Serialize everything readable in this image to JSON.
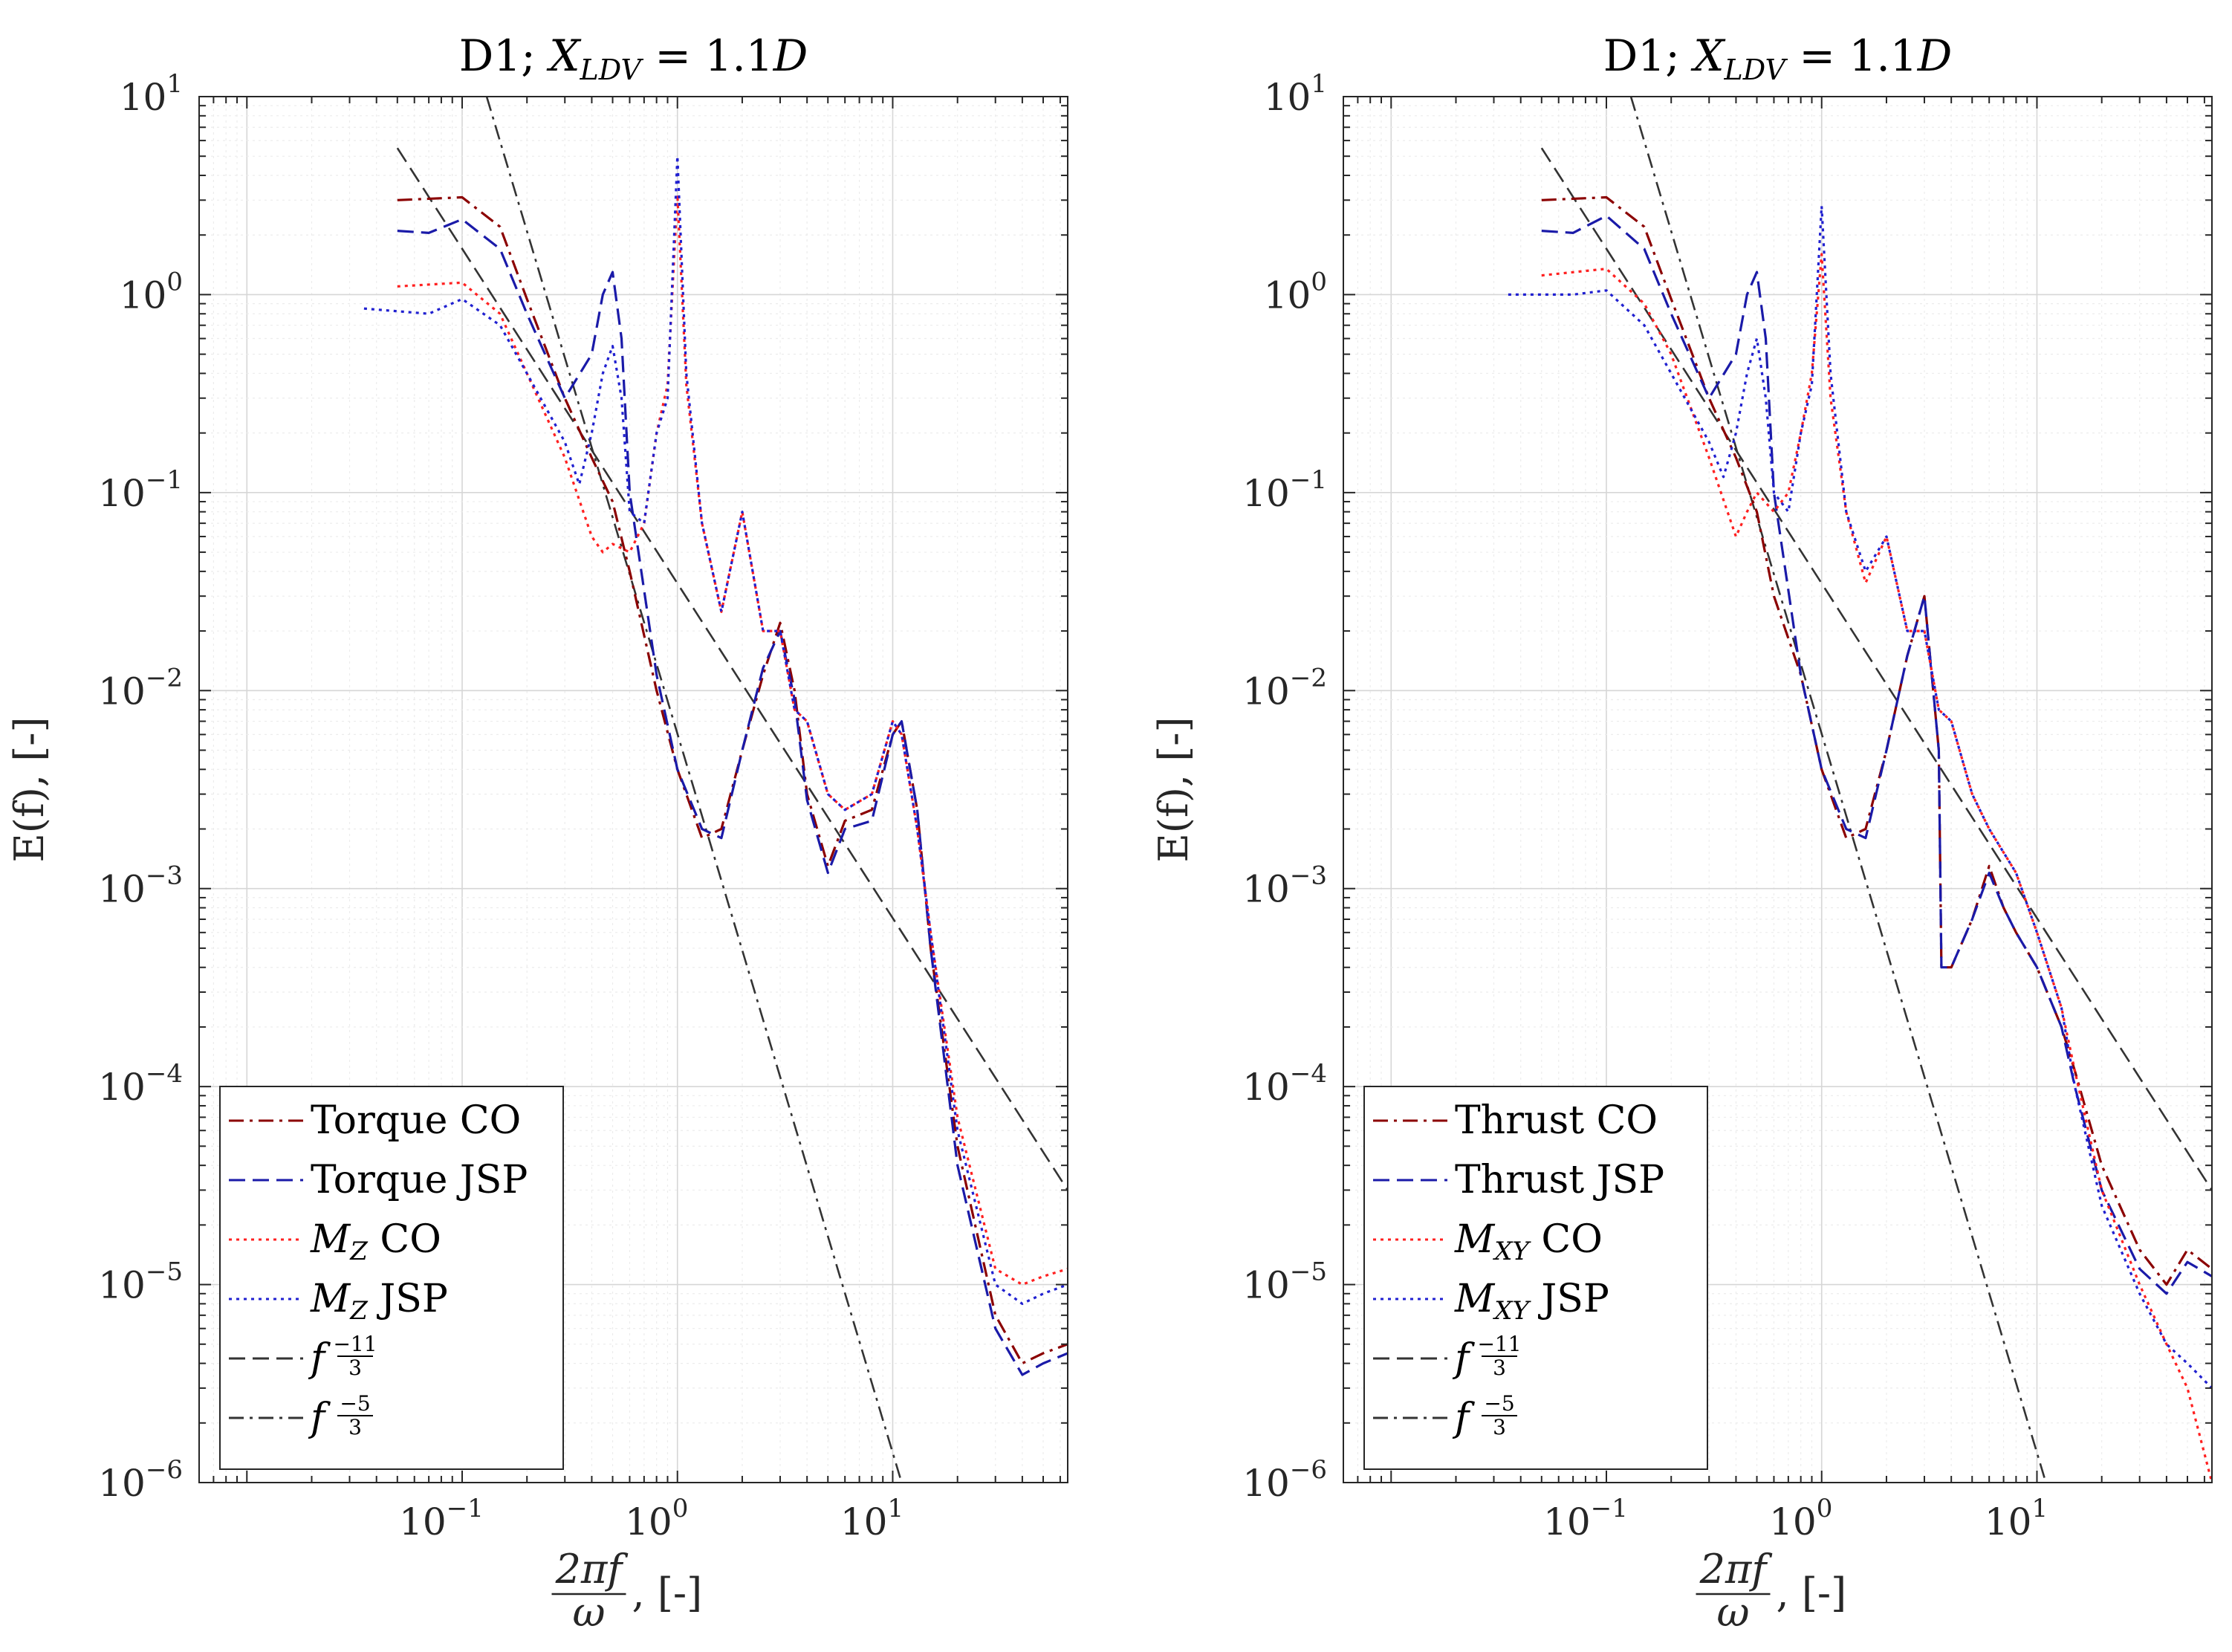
{
  "chart_data": [
    {
      "type": "line",
      "title": "D1; X_LDV = 1.1D",
      "title_parts": {
        "prefix": "D1; ",
        "var": "X",
        "sub": "LDV",
        "eq": " = 1.1",
        "suffix": "D"
      },
      "xlabel": "2πf/ω, [-]",
      "xlabel_parts": {
        "num": "2πf",
        "den": "ω",
        "unit": ", [-]"
      },
      "ylabel": "E(f), [-]",
      "x_scale": "log",
      "y_scale": "log",
      "xlim": [
        0.006,
        65
      ],
      "ylim": [
        1e-06,
        10
      ],
      "x_ticks": [
        "10^{-1}",
        "10^{0}",
        "10^{1}"
      ],
      "y_ticks": [
        "10^{1}",
        "10^{0}",
        "10^{-1}",
        "10^{-2}",
        "10^{-3}",
        "10^{-4}",
        "10^{-5}",
        "10^{-6}"
      ],
      "grid": true,
      "legend_position": "bottom-left",
      "series": [
        {
          "name": "Torque CO",
          "color": "#8b0000",
          "style": "dashdot",
          "x": [
            0.05,
            0.1,
            0.15,
            0.2,
            0.3,
            0.4,
            0.5,
            0.6,
            0.8,
            1.0,
            1.3,
            1.6,
            2.0,
            2.5,
            3.0,
            3.5,
            4.0,
            5.0,
            6.0,
            8.0,
            10.0,
            11.0,
            13.0,
            15.0,
            20.0,
            30.0,
            40.0,
            50.0,
            65.0
          ],
          "y": [
            3.0,
            3.1,
            2.2,
            0.95,
            0.3,
            0.15,
            0.09,
            0.04,
            0.01,
            0.004,
            0.0018,
            0.002,
            0.005,
            0.012,
            0.022,
            0.01,
            0.003,
            0.0013,
            0.0022,
            0.0025,
            0.006,
            0.007,
            0.0025,
            0.0005,
            5e-05,
            7e-06,
            4e-06,
            4.5e-06,
            5e-06
          ]
        },
        {
          "name": "Torque JSP",
          "color": "#1a1aa8",
          "style": "dashed",
          "x": [
            0.05,
            0.07,
            0.1,
            0.15,
            0.2,
            0.3,
            0.4,
            0.45,
            0.5,
            0.55,
            0.6,
            0.8,
            1.0,
            1.3,
            1.6,
            2.0,
            2.5,
            3.0,
            3.5,
            4.0,
            5.0,
            6.0,
            8.0,
            10.0,
            11.0,
            13.0,
            15.0,
            20.0,
            30.0,
            40.0,
            50.0,
            65.0
          ],
          "y": [
            2.1,
            2.05,
            2.4,
            1.7,
            0.8,
            0.3,
            0.5,
            1.0,
            1.3,
            0.6,
            0.1,
            0.012,
            0.004,
            0.002,
            0.0018,
            0.005,
            0.013,
            0.02,
            0.009,
            0.0028,
            0.0012,
            0.002,
            0.0022,
            0.006,
            0.007,
            0.0025,
            0.0005,
            4e-05,
            6e-06,
            3.5e-06,
            4e-06,
            4.5e-06
          ]
        },
        {
          "name": "M_Z CO",
          "color": "#ff2020",
          "style": "dotted",
          "x": [
            0.05,
            0.1,
            0.15,
            0.2,
            0.3,
            0.4,
            0.45,
            0.5,
            0.6,
            0.7,
            0.8,
            0.9,
            1.0,
            1.1,
            1.3,
            1.6,
            2.0,
            2.5,
            3.0,
            3.5,
            4.0,
            5.0,
            6.0,
            8.0,
            10.0,
            11.0,
            13.0,
            15.0,
            20.0,
            30.0,
            40.0,
            50.0,
            65.0
          ],
          "y": [
            1.1,
            1.15,
            0.8,
            0.4,
            0.15,
            0.06,
            0.05,
            0.055,
            0.05,
            0.07,
            0.2,
            0.35,
            3.2,
            0.35,
            0.07,
            0.025,
            0.08,
            0.02,
            0.02,
            0.008,
            0.007,
            0.003,
            0.0025,
            0.003,
            0.007,
            0.006,
            0.002,
            0.0006,
            7e-05,
            1.2e-05,
            1e-05,
            1.1e-05,
            1.2e-05
          ]
        },
        {
          "name": "M_Z JSP",
          "color": "#2020d0",
          "style": "dotted",
          "x": [
            0.035,
            0.07,
            0.1,
            0.15,
            0.2,
            0.3,
            0.35,
            0.4,
            0.45,
            0.5,
            0.55,
            0.6,
            0.7,
            0.8,
            0.9,
            1.0,
            1.1,
            1.3,
            1.6,
            2.0,
            2.5,
            3.0,
            3.5,
            4.0,
            5.0,
            6.0,
            8.0,
            10.0,
            11.0,
            13.0,
            15.0,
            20.0,
            30.0,
            40.0,
            50.0,
            65.0
          ],
          "y": [
            0.85,
            0.8,
            0.95,
            0.7,
            0.4,
            0.18,
            0.11,
            0.2,
            0.4,
            0.55,
            0.3,
            0.08,
            0.07,
            0.2,
            0.3,
            5.0,
            0.4,
            0.07,
            0.025,
            0.08,
            0.02,
            0.02,
            0.008,
            0.007,
            0.003,
            0.0025,
            0.003,
            0.007,
            0.006,
            0.002,
            0.0006,
            6e-05,
            1e-05,
            8e-06,
            9e-06,
            1e-05
          ]
        },
        {
          "name": "f^(-11/3)",
          "color": "#333333",
          "style": "dashed",
          "x": [
            0.05,
            65.0
          ],
          "y": [
            5.5,
            3e-05
          ]
        },
        {
          "name": "f^(-5/3)",
          "color": "#333333",
          "style": "dashdot",
          "x": [
            0.13,
            11.0
          ],
          "y": [
            10.0,
            1e-06
          ]
        }
      ],
      "legend_labels": [
        {
          "plain": "Torque CO"
        },
        {
          "plain": "Torque JSP"
        },
        {
          "var": "M",
          "sub": "Z",
          "rest": " CO"
        },
        {
          "var": "M",
          "sub": "Z",
          "rest": " JSP"
        },
        {
          "var": "f",
          "frac_num": "−11",
          "frac_den": "3"
        },
        {
          "var": "f",
          "frac_num": "−5",
          "frac_den": "3"
        }
      ]
    },
    {
      "type": "line",
      "title": "D1; X_LDV = 1.1D",
      "title_parts": {
        "prefix": "D1; ",
        "var": "X",
        "sub": "LDV",
        "eq": " = 1.1",
        "suffix": "D"
      },
      "xlabel": "2πf/ω, [-]",
      "xlabel_parts": {
        "num": "2πf",
        "den": "ω",
        "unit": ", [-]"
      },
      "ylabel": "E(f), [-]",
      "x_scale": "log",
      "y_scale": "log",
      "xlim": [
        0.006,
        65
      ],
      "ylim": [
        1e-06,
        10
      ],
      "x_ticks": [
        "10^{-1}",
        "10^{0}",
        "10^{1}"
      ],
      "y_ticks": [
        "10^{1}",
        "10^{0}",
        "10^{-1}",
        "10^{-2}",
        "10^{-3}",
        "10^{-4}",
        "10^{-5}",
        "10^{-6}"
      ],
      "grid": true,
      "legend_position": "bottom-left",
      "series": [
        {
          "name": "Thrust CO",
          "color": "#8b0000",
          "style": "dashdot",
          "x": [
            0.05,
            0.1,
            0.15,
            0.2,
            0.3,
            0.4,
            0.5,
            0.6,
            0.8,
            1.0,
            1.3,
            1.6,
            2.0,
            2.5,
            3.0,
            3.5,
            3.6,
            4.0,
            5.0,
            6.0,
            7.0,
            8.0,
            10.0,
            13.0,
            15.0,
            20.0,
            30.0,
            40.0,
            50.0,
            65.0
          ],
          "y": [
            3.0,
            3.1,
            2.2,
            0.95,
            0.3,
            0.15,
            0.08,
            0.03,
            0.012,
            0.004,
            0.0018,
            0.002,
            0.005,
            0.015,
            0.03,
            0.005,
            0.0004,
            0.0004,
            0.0007,
            0.0013,
            0.0008,
            0.0006,
            0.0004,
            0.0002,
            0.00012,
            4e-05,
            1.5e-05,
            1e-05,
            1.5e-05,
            1.2e-05
          ]
        },
        {
          "name": "Thrust JSP",
          "color": "#1a1aa8",
          "style": "dashed",
          "x": [
            0.05,
            0.07,
            0.1,
            0.15,
            0.2,
            0.3,
            0.4,
            0.45,
            0.5,
            0.55,
            0.6,
            0.8,
            1.0,
            1.3,
            1.6,
            2.0,
            2.5,
            3.0,
            3.5,
            3.6,
            4.0,
            5.0,
            6.0,
            7.0,
            8.0,
            10.0,
            13.0,
            15.0,
            20.0,
            30.0,
            40.0,
            50.0,
            65.0
          ],
          "y": [
            2.1,
            2.05,
            2.5,
            1.7,
            0.8,
            0.3,
            0.5,
            1.0,
            1.3,
            0.6,
            0.1,
            0.012,
            0.004,
            0.002,
            0.0018,
            0.005,
            0.015,
            0.03,
            0.005,
            0.0004,
            0.0004,
            0.0007,
            0.0012,
            0.0008,
            0.0006,
            0.0004,
            0.0002,
            0.0001,
            3e-05,
            1.2e-05,
            9e-06,
            1.3e-05,
            1.1e-05
          ]
        },
        {
          "name": "M_XY CO",
          "color": "#ff2020",
          "style": "dotted",
          "x": [
            0.05,
            0.1,
            0.15,
            0.2,
            0.3,
            0.4,
            0.45,
            0.5,
            0.6,
            0.7,
            0.8,
            0.9,
            1.0,
            1.1,
            1.3,
            1.6,
            2.0,
            2.5,
            3.0,
            3.5,
            4.0,
            5.0,
            6.0,
            8.0,
            10.0,
            13.0,
            15.0,
            20.0,
            30.0,
            40.0,
            50.0,
            65.0
          ],
          "y": [
            1.25,
            1.35,
            0.9,
            0.5,
            0.15,
            0.06,
            0.08,
            0.1,
            0.08,
            0.1,
            0.2,
            0.4,
            1.6,
            0.3,
            0.08,
            0.035,
            0.06,
            0.02,
            0.02,
            0.008,
            0.007,
            0.003,
            0.002,
            0.0012,
            0.0006,
            0.00025,
            0.00012,
            3e-05,
            1e-05,
            5e-06,
            3e-06,
            1e-06
          ]
        },
        {
          "name": "M_XY JSP",
          "color": "#2020d0",
          "style": "dotted",
          "x": [
            0.035,
            0.07,
            0.1,
            0.15,
            0.2,
            0.3,
            0.35,
            0.4,
            0.45,
            0.5,
            0.55,
            0.6,
            0.7,
            0.8,
            0.9,
            1.0,
            1.1,
            1.3,
            1.6,
            2.0,
            2.5,
            3.0,
            3.5,
            4.0,
            5.0,
            6.0,
            8.0,
            10.0,
            13.0,
            15.0,
            20.0,
            30.0,
            40.0,
            50.0,
            65.0
          ],
          "y": [
            1.0,
            1.0,
            1.05,
            0.7,
            0.4,
            0.18,
            0.12,
            0.2,
            0.4,
            0.6,
            0.3,
            0.1,
            0.08,
            0.2,
            0.35,
            2.8,
            0.4,
            0.08,
            0.04,
            0.06,
            0.02,
            0.02,
            0.008,
            0.007,
            0.003,
            0.002,
            0.0012,
            0.0006,
            0.00025,
            0.0001,
            2.5e-05,
            9e-06,
            5e-06,
            4e-06,
            3e-06
          ]
        },
        {
          "name": "f^(-11/3)",
          "color": "#333333",
          "style": "dashed",
          "x": [
            0.05,
            65.0
          ],
          "y": [
            5.5,
            3e-05
          ]
        },
        {
          "name": "f^(-5/3)",
          "color": "#333333",
          "style": "dashdot",
          "x": [
            0.13,
            11.0
          ],
          "y": [
            10.0,
            1e-06
          ]
        }
      ],
      "legend_labels": [
        {
          "plain": "Thrust CO"
        },
        {
          "plain": "Thrust JSP"
        },
        {
          "var": "M",
          "sub": "XY",
          "rest": " CO"
        },
        {
          "var": "M",
          "sub": "XY",
          "rest": " JSP"
        },
        {
          "var": "f",
          "frac_num": "−11",
          "frac_den": "3"
        },
        {
          "var": "f",
          "frac_num": "−5",
          "frac_den": "3"
        }
      ]
    }
  ]
}
